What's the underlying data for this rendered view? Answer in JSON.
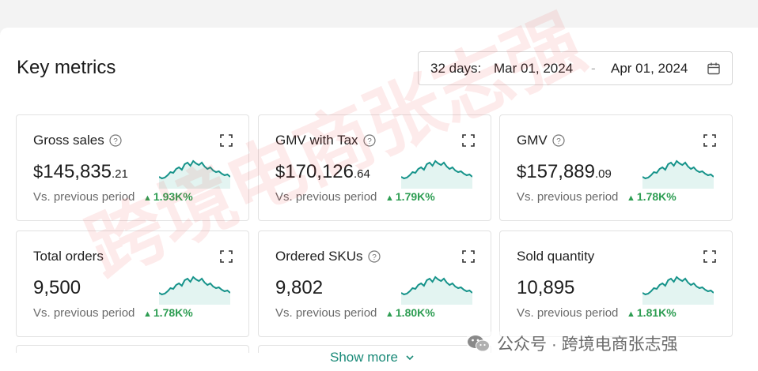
{
  "page": {
    "title": "Key metrics"
  },
  "date_range": {
    "label": "32 days:",
    "start": "Mar 01, 2024",
    "separator": "-",
    "end": "Apr 01, 2024",
    "icon": "calendar-icon"
  },
  "metrics": [
    {
      "name": "Gross sales",
      "currency": "$",
      "value": "145,835",
      "cents": ".21",
      "comparison": "Vs. previous period",
      "delta": "1.93K%",
      "has_help": true
    },
    {
      "name": "GMV with Tax",
      "currency": "$",
      "value": "170,126",
      "cents": ".64",
      "comparison": "Vs. previous period",
      "delta": "1.79K%",
      "has_help": true
    },
    {
      "name": "GMV",
      "currency": "$",
      "value": "157,889",
      "cents": ".09",
      "comparison": "Vs. previous period",
      "delta": "1.78K%",
      "has_help": true
    },
    {
      "name": "Total orders",
      "currency": "",
      "value": "9,500",
      "cents": "",
      "comparison": "Vs. previous period",
      "delta": "1.78K%",
      "has_help": false
    },
    {
      "name": "Ordered SKUs",
      "currency": "",
      "value": "9,802",
      "cents": "",
      "comparison": "Vs. previous period",
      "delta": "1.80K%",
      "has_help": true
    },
    {
      "name": "Sold quantity",
      "currency": "",
      "value": "10,895",
      "cents": "",
      "comparison": "Vs. previous period",
      "delta": "1.81K%",
      "has_help": false
    }
  ],
  "show_more": {
    "label": "Show more",
    "icon": "chevron-down-icon"
  },
  "watermark": {
    "diagonal": "跨境电商张志强",
    "account": "公众号 · 跨境电商张志强"
  },
  "colors": {
    "accent": "#1a8a78",
    "spark_line": "#16938a",
    "spark_fill": "#e3f4f1",
    "delta_up": "#2d9d52"
  }
}
